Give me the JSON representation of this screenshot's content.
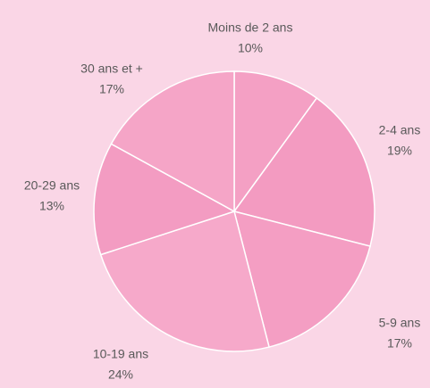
{
  "chart_data": {
    "type": "pie",
    "categories": [
      "Moins de 2 ans",
      "2-4 ans",
      "5-9 ans",
      "10-19 ans",
      "20-29 ans",
      "30 ans et +"
    ],
    "values": [
      10,
      19,
      17,
      24,
      13,
      17
    ],
    "value_labels": [
      "10%",
      "19%",
      "17%",
      "24%",
      "13%",
      "17%"
    ],
    "colors": [
      "#f4a0c4",
      "#f39bc1",
      "#f49ec3",
      "#f6a9ca",
      "#f39cc2",
      "#f5a5c7"
    ]
  }
}
